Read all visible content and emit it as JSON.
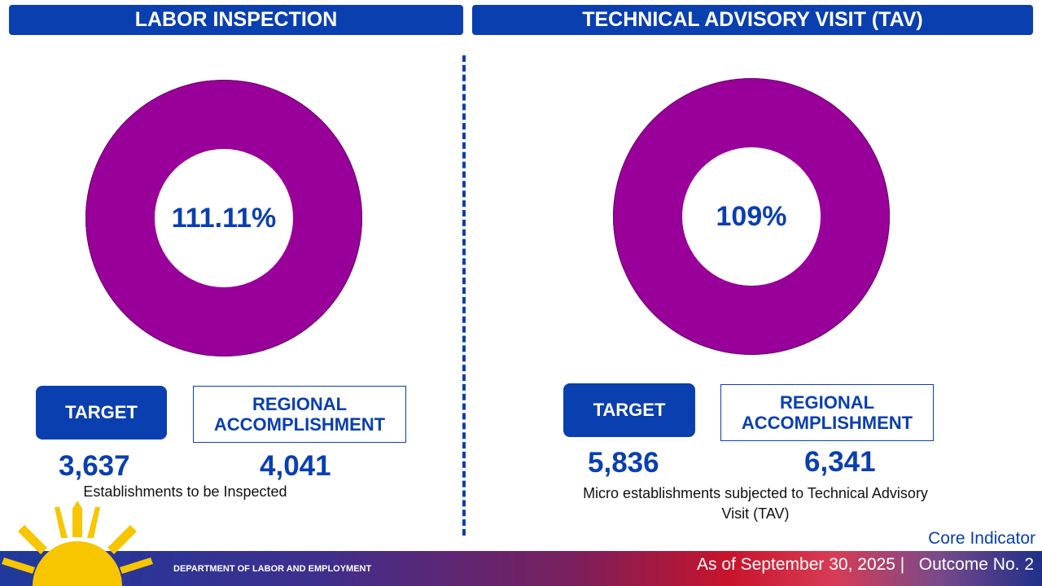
{
  "left": {
    "title": "LABOR INSPECTION",
    "percent_label": "111.11%",
    "percent": 111.11,
    "target_label": "TARGET",
    "accomplishment_label": "REGIONAL ACCOMPLISHMENT",
    "target_value": "3,637",
    "accomplishment_value": "4,041",
    "description": "Establishments to be Inspected"
  },
  "right": {
    "title": "TECHNICAL ADVISORY VISIT (TAV)",
    "percent_label": "109%",
    "percent": 109,
    "target_label": "TARGET",
    "accomplishment_label": "REGIONAL ACCOMPLISHMENT",
    "target_value": "5,836",
    "accomplishment_value": "6,341",
    "description": "Micro establishments subjected to Technical Advisory Visit (TAV)"
  },
  "footer": {
    "department": "DEPARTMENT OF LABOR AND EMPLOYMENT",
    "core_indicator": "Core Indicator",
    "as_of": "As of September 30, 2025 |   Outcome No. 2"
  },
  "colors": {
    "accent": "#0a3fb0",
    "donut": "#990099"
  }
}
